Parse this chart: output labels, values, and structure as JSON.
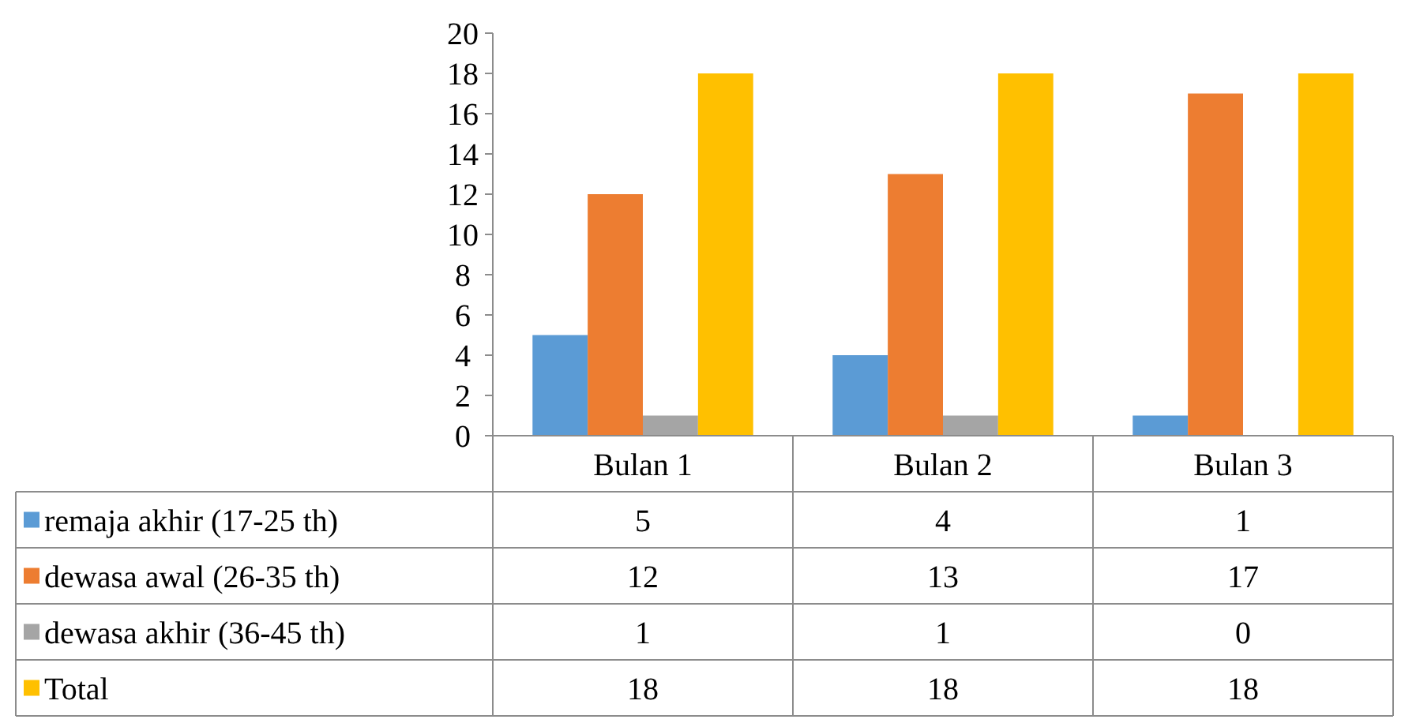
{
  "chart_data": {
    "type": "bar",
    "categories": [
      "Bulan 1",
      "Bulan 2",
      "Bulan 3"
    ],
    "series": [
      {
        "name": "remaja akhir (17-25 th)",
        "color": "#5b9bd5",
        "values": [
          5,
          4,
          1
        ]
      },
      {
        "name": "dewasa awal (26-35 th)",
        "color": "#ed7d31",
        "values": [
          12,
          13,
          17
        ]
      },
      {
        "name": "dewasa akhir (36-45 th)",
        "color": "#a5a5a5",
        "values": [
          1,
          1,
          0
        ]
      },
      {
        "name": "Total",
        "color": "#ffc000",
        "values": [
          18,
          18,
          18
        ]
      }
    ],
    "ylim": [
      0,
      20
    ],
    "yticks": [
      0,
      2,
      4,
      6,
      8,
      10,
      12,
      14,
      16,
      18,
      20
    ],
    "legend": "bottom",
    "data_labels": true
  }
}
